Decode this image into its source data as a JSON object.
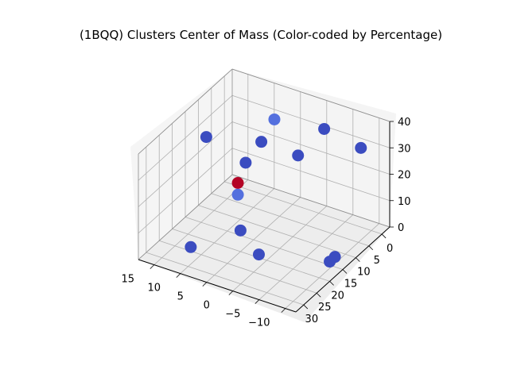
{
  "chart_data": {
    "type": "scatter",
    "projection": "3d",
    "title": "(1BQQ) Clusters Center of Mass (Color-coded by Percentage)",
    "xlabel": "",
    "ylabel": "",
    "zlabel": "",
    "xlim": [
      -3,
      33
    ],
    "ylim": [
      -12,
      18
    ],
    "zlim": [
      0,
      40
    ],
    "xticks": [
      "0",
      "5",
      "10",
      "15",
      "20",
      "25",
      "30"
    ],
    "yticks": [
      "−10",
      "−5",
      "0",
      "5",
      "10",
      "15"
    ],
    "zticks": [
      "0",
      "10",
      "20",
      "30",
      "40"
    ],
    "grid": true,
    "colormap": "coolwarm",
    "points": [
      {
        "x": 0,
        "y": -8,
        "z": 30,
        "color": "#3b4cc0"
      },
      {
        "x": 2,
        "y": -2,
        "z": 35,
        "color": "#3b4cc0"
      },
      {
        "x": 8,
        "y": 0,
        "z": 29,
        "color": "#3b4cc0"
      },
      {
        "x": 5,
        "y": 6,
        "z": 36,
        "color": "#5470de"
      },
      {
        "x": 10,
        "y": 6,
        "z": 32,
        "color": "#3b4cc0"
      },
      {
        "x": 14,
        "y": 7,
        "z": 27,
        "color": "#3b4cc0"
      },
      {
        "x": 17,
        "y": 7,
        "z": 22,
        "color": "#b40426"
      },
      {
        "x": 19,
        "y": 6,
        "z": 20,
        "color": "#5470de"
      },
      {
        "x": 15,
        "y": 14,
        "z": 33,
        "color": "#3b4cc0"
      },
      {
        "x": 20,
        "y": 5,
        "z": 8,
        "color": "#3b4cc0"
      },
      {
        "x": 27,
        "y": 11,
        "z": 4,
        "color": "#3b4cc0"
      },
      {
        "x": 19,
        "y": 2,
        "z": 0,
        "color": "#3b4cc0"
      },
      {
        "x": 16,
        "y": -11,
        "z": 5,
        "color": "#3b4cc0"
      },
      {
        "x": 18,
        "y": -11,
        "z": 5,
        "color": "#3b4cc0"
      }
    ]
  }
}
